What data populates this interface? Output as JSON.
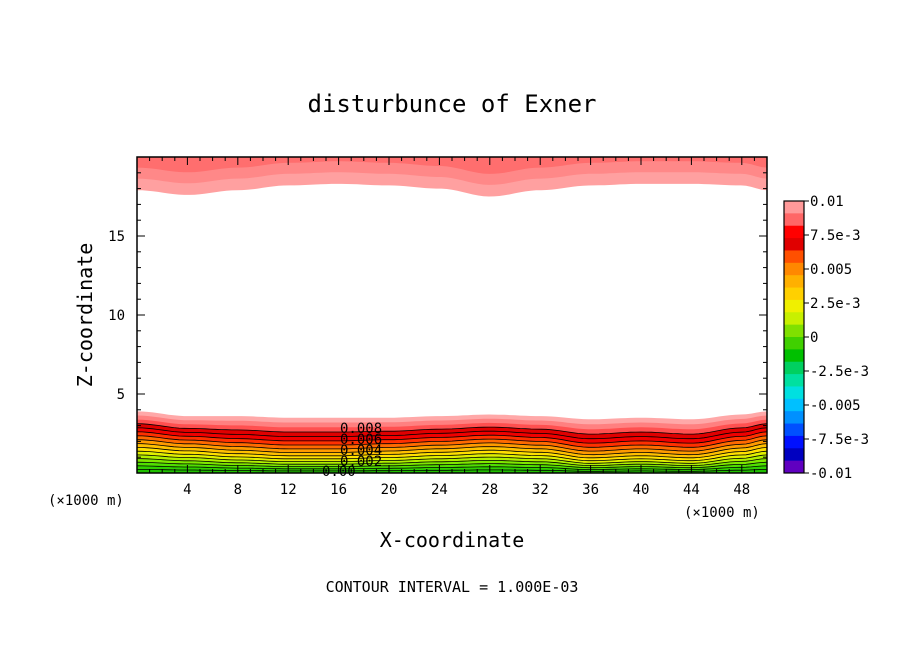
{
  "chart_data": {
    "type": "heatmap",
    "title": "disturbunce of Exner",
    "xlabel": "X-coordinate",
    "ylabel": "Z-coordinate",
    "x_unit_left": "(×1000 m)",
    "x_unit_right": "(×1000 m)",
    "footer": "CONTOUR INTERVAL = 1.000E-03",
    "xlim": [
      0,
      50
    ],
    "ylim": [
      0,
      20
    ],
    "x_ticks": [
      "4",
      "8",
      "12",
      "16",
      "20",
      "24",
      "28",
      "32",
      "36",
      "40",
      "44",
      "48"
    ],
    "y_ticks": [
      "5",
      "10",
      "15"
    ],
    "colorbar": {
      "range": [
        -0.01,
        0.01
      ],
      "labels": [
        "0.01",
        "7.5e-3",
        "0.005",
        "2.5e-3",
        "0",
        "-2.5e-3",
        "-0.005",
        "-7.5e-3",
        "-0.01"
      ],
      "colors": [
        "#ff9999",
        "#ff6666",
        "#ff0000",
        "#e00000",
        "#ff5000",
        "#ff8800",
        "#ffb000",
        "#ffd000",
        "#f0f000",
        "#c8f000",
        "#80e000",
        "#40d000",
        "#00c000",
        "#00d060",
        "#00e0a0",
        "#00e0e0",
        "#00c0ff",
        "#0090ff",
        "#0050ff",
        "#0010ff",
        "#0000c0",
        "#6000c0"
      ]
    },
    "contour_labels": [
      "0.008",
      "0.006",
      "0.004",
      "0.002",
      "0.00"
    ],
    "bottom_region": {
      "x": [
        0,
        4,
        8,
        12,
        16,
        20,
        24,
        28,
        32,
        36,
        40,
        44,
        48,
        50
      ],
      "top_z": [
        3.9,
        3.6,
        3.6,
        3.5,
        3.5,
        3.5,
        3.6,
        3.7,
        3.6,
        3.4,
        3.5,
        3.4,
        3.7,
        3.9
      ],
      "dip": [
        0.1,
        0.2,
        0.4,
        0.5,
        0.5,
        0.4,
        0.3,
        0.2,
        0.3,
        0.6,
        0.5,
        0.6,
        0.3,
        0.1
      ]
    },
    "top_region": {
      "x": [
        0,
        4,
        8,
        12,
        16,
        20,
        24,
        28,
        32,
        36,
        40,
        44,
        48,
        50
      ],
      "bottom_z": [
        17.9,
        17.6,
        17.9,
        18.2,
        18.3,
        18.2,
        18.0,
        17.5,
        17.9,
        18.2,
        18.3,
        18.3,
        18.2,
        17.9
      ]
    }
  }
}
